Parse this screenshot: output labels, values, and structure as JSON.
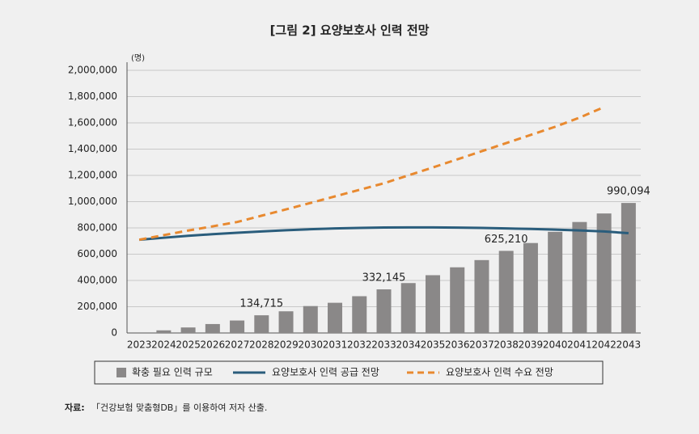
{
  "chart_data": {
    "type": "bar",
    "title": "[그림 2] 요양보호사 인력 전망",
    "y_unit": "(명)",
    "categories": [
      "2023",
      "2024",
      "2025",
      "2026",
      "2027",
      "2028",
      "2029",
      "2030",
      "2031",
      "2032",
      "2033",
      "2034",
      "2035",
      "2036",
      "2037",
      "2038",
      "2039",
      "2040",
      "2041",
      "2042",
      "2043"
    ],
    "series": [
      {
        "name": "확충 필요 인력 규모",
        "type": "bar",
        "color": "#8a8888",
        "values": [
          0,
          20000,
          42000,
          68000,
          95000,
          134715,
          165000,
          205000,
          230000,
          280000,
          332145,
          380000,
          440000,
          500000,
          555000,
          625210,
          685000,
          770000,
          845000,
          910000,
          990094
        ],
        "value_labels": [
          null,
          null,
          null,
          null,
          null,
          "134,715",
          null,
          null,
          null,
          null,
          "332,145",
          null,
          null,
          null,
          null,
          "625,210",
          null,
          null,
          null,
          null,
          "990,094"
        ]
      },
      {
        "name": "요양보호사 인력 공급 전망",
        "type": "line",
        "color": "#2a5d7c",
        "dashed": false,
        "values": [
          710000,
          725000,
          740000,
          752000,
          763000,
          773000,
          782000,
          790000,
          796000,
          800000,
          803000,
          804000,
          804000,
          802000,
          800000,
          796000,
          792000,
          787000,
          781000,
          773000,
          760000
        ]
      },
      {
        "name": "요양보호사 인력 수요 전망",
        "type": "line",
        "color": "#e8892f",
        "dashed": true,
        "values": [
          710000,
          745000,
          780000,
          812000,
          845000,
          893000,
          941000,
          990000,
          1040000,
          1090000,
          1140000,
          1200000,
          1260000,
          1322000,
          1384000,
          1446000,
          1508000,
          1570000,
          1640000,
          1720000,
          null
        ]
      }
    ],
    "ylim": [
      0,
      2000000
    ],
    "yticks": [
      0,
      {
        "value": 200000,
        "label": "200,000"
      },
      {
        "value": 400000,
        "label": "400,000"
      },
      {
        "value": 600000,
        "label": "600,000"
      },
      {
        "value": 800000,
        "label": "800,000"
      },
      {
        "value": 1000000,
        "label": "1,000,000"
      },
      {
        "value": 1200000,
        "label": "1,200,000"
      },
      {
        "value": 1400000,
        "label": "1,400,000"
      },
      {
        "value": 1600000,
        "label": "1,600,000"
      },
      {
        "value": 1800000,
        "label": "1,800,000"
      },
      {
        "value": 2000000,
        "label": "2,000,000"
      }
    ],
    "grid": true,
    "legend": "bottom",
    "source_label": "자료:",
    "source_text": "「건강보험 맞춤형DB」를 이용하여 저자 산출."
  }
}
